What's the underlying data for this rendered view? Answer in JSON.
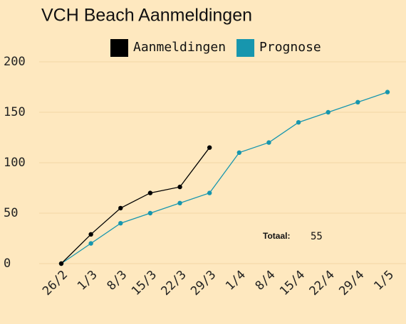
{
  "chart_data": {
    "type": "line",
    "title": "VCH Beach Aanmeldingen",
    "categories": [
      "26/2",
      "1/3",
      "8/3",
      "15/3",
      "22/3",
      "29/3",
      "1/4",
      "8/4",
      "15/4",
      "22/4",
      "29/4",
      "1/5"
    ],
    "series": [
      {
        "name": "Aanmeldingen",
        "color": "#000000",
        "values": [
          0,
          29,
          55,
          70,
          76,
          115,
          null,
          null,
          null,
          null,
          null,
          null
        ]
      },
      {
        "name": "Prognose",
        "color": "#1796ae",
        "values": [
          0,
          20,
          40,
          50,
          60,
          70,
          110,
          120,
          140,
          150,
          160,
          170
        ]
      }
    ],
    "ylim": [
      0,
      200
    ],
    "yticks": [
      0,
      50,
      100,
      150,
      200
    ],
    "grid": true,
    "annotations": [
      "Totaal:",
      "55"
    ]
  }
}
